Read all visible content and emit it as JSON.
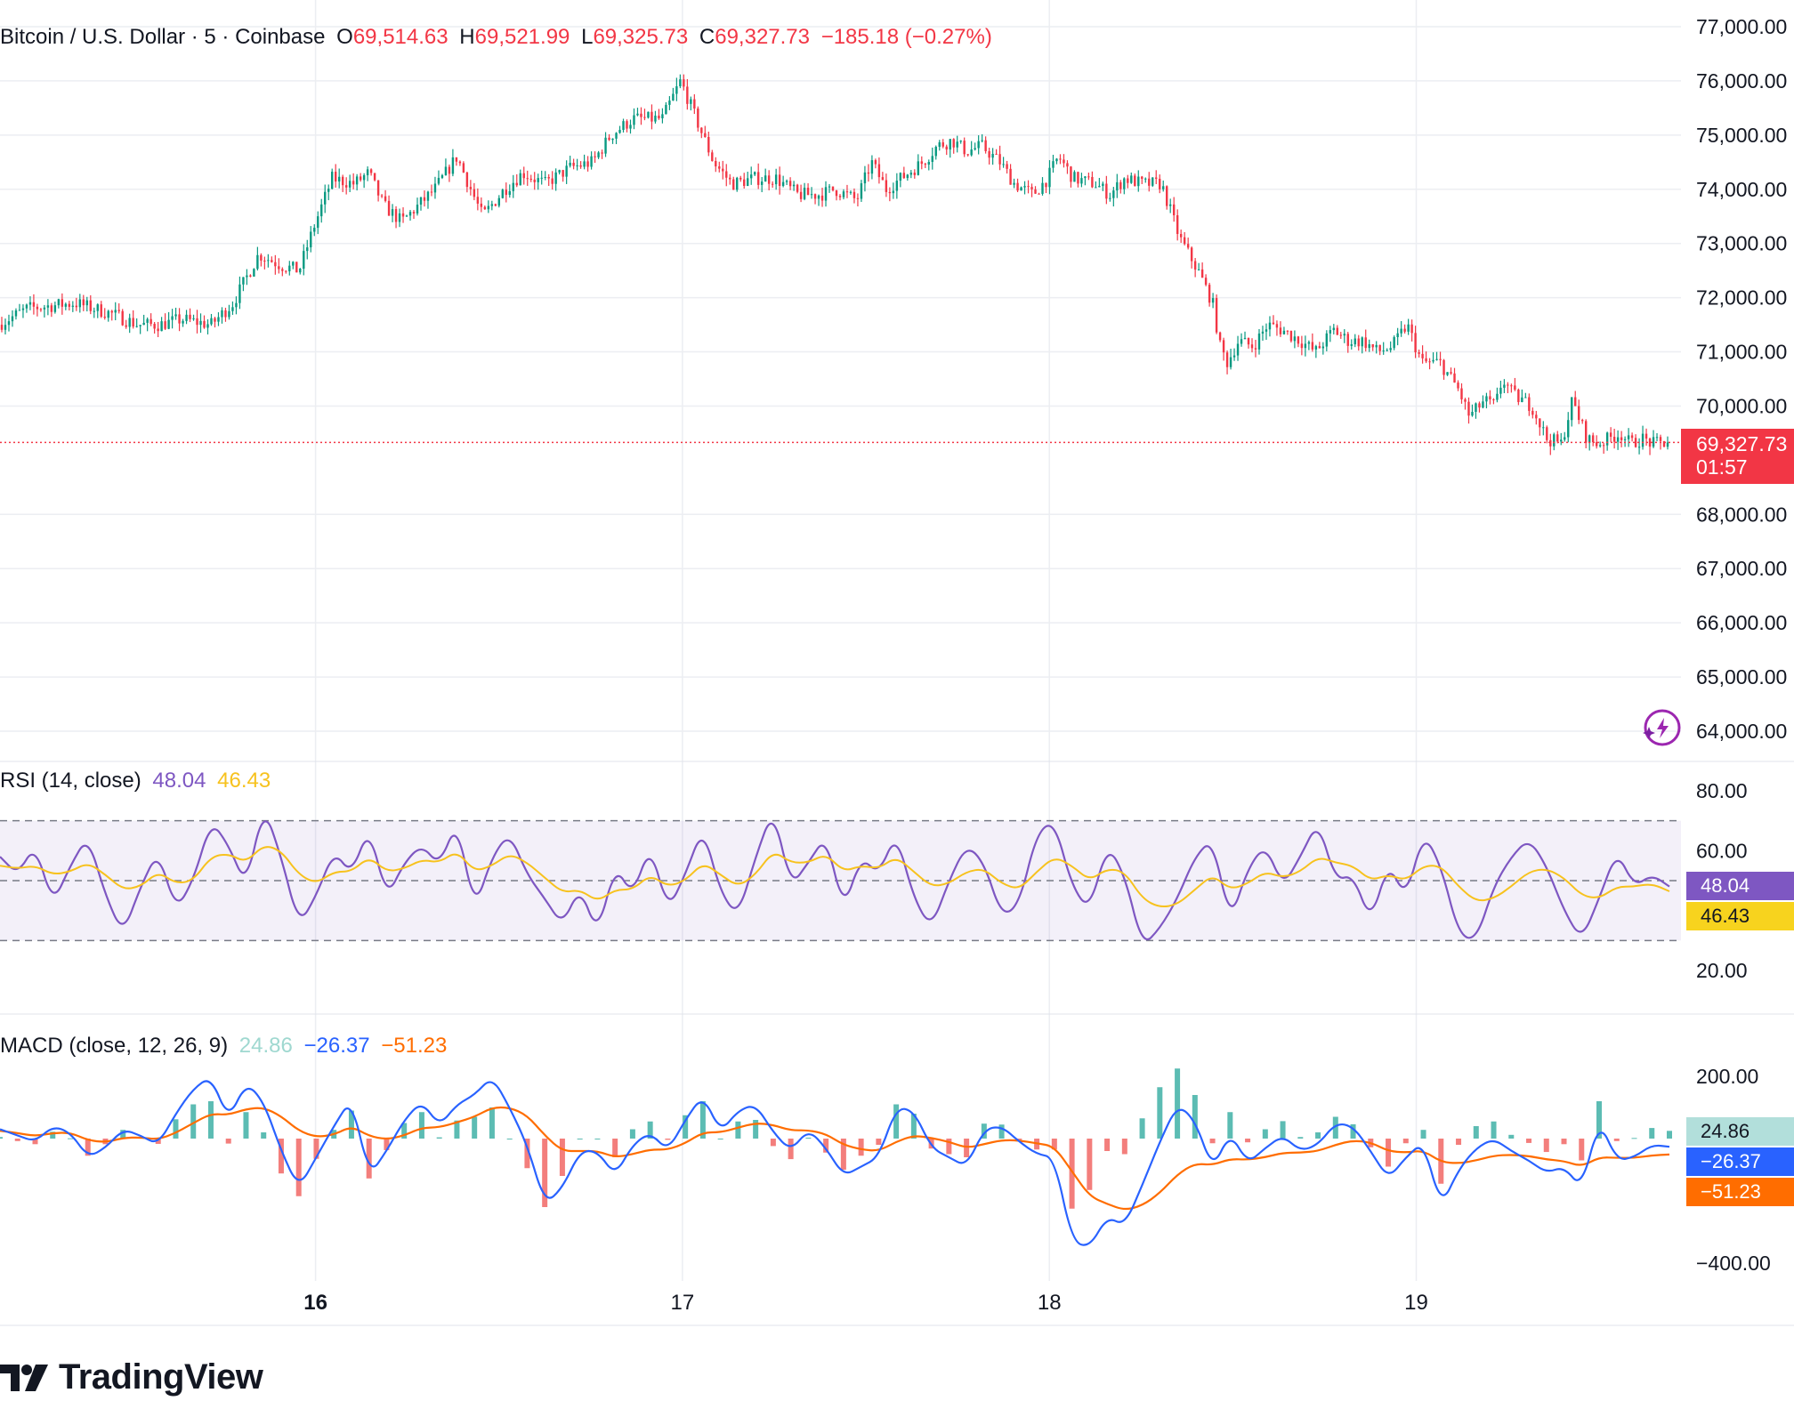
{
  "legend": {
    "title": "Bitcoin / U.S. Dollar · 5 · Coinbase",
    "o_label": "O",
    "o_value": "69,514.63",
    "h_label": "H",
    "h_value": "69,521.99",
    "l_label": "L",
    "l_value": "69,325.73",
    "c_label": "C",
    "c_value": "69,327.73",
    "change": "−185.18 (−0.27%)"
  },
  "price_badge": {
    "price": "69,327.73",
    "countdown": "01:57"
  },
  "rsi_legend": {
    "title": "RSI (14, close)",
    "rsi": "48.04",
    "ma": "46.43"
  },
  "macd_legend": {
    "title": "MACD (close, 12, 26, 9)",
    "hist": "24.86",
    "macd": "−26.37",
    "signal": "−51.23"
  },
  "badges": {
    "rsi": "48.04",
    "rsi_ma": "46.43",
    "hist": "24.86",
    "macd": "−26.37",
    "signal": "−51.23"
  },
  "colors": {
    "up": "#089981",
    "down": "#f23645",
    "rsi": "#7e57c2",
    "rsi_ma": "#f7c21e",
    "macd": "#2962ff",
    "signal": "#ff6d00",
    "hist_up": "#26a69a",
    "hist_down": "#ef5350",
    "grid": "#eceef2",
    "axis_text": "#131722"
  },
  "logo": {
    "icon": "tradingview-logo-icon",
    "text": "TradingView"
  },
  "chart_data": [
    {
      "type": "candlestick",
      "title": "Bitcoin / U.S. Dollar · 5 · Coinbase",
      "interval": "5",
      "exchange": "Coinbase",
      "ylim": [
        64000,
        77000
      ],
      "y_ticks": [
        "77,000.00",
        "76,000.00",
        "75,000.00",
        "74,000.00",
        "73,000.00",
        "72,000.00",
        "71,000.00",
        "70,000.00",
        "68,000.00",
        "67,000.00",
        "66,000.00",
        "65,000.00",
        "64,000.00"
      ],
      "x_ticks": [
        "16",
        "17",
        "18",
        "19"
      ],
      "x_tick_days": [
        16,
        17,
        18,
        19
      ],
      "x_range_days": [
        15.14,
        19.69
      ],
      "last_price": 69327.73,
      "price_path": {
        "day": [
          15.14,
          15.22,
          15.35,
          15.45,
          15.52,
          15.58,
          15.64,
          15.72,
          15.78,
          15.85,
          15.91,
          15.96,
          16.0,
          16.05,
          16.11,
          16.15,
          16.19,
          16.24,
          16.33,
          16.39,
          16.46,
          16.52,
          16.57,
          16.63,
          16.7,
          16.76,
          16.81,
          16.87,
          16.95,
          17.0,
          17.03,
          17.06,
          17.09,
          17.14,
          17.2,
          17.26,
          17.32,
          17.38,
          17.42,
          17.48,
          17.52,
          17.56,
          17.62,
          17.66,
          17.7,
          17.74,
          17.78,
          17.82,
          17.87,
          17.91,
          17.96,
          18.0,
          18.03,
          18.07,
          18.13,
          18.17,
          18.21,
          18.26,
          18.31,
          18.36,
          18.41,
          18.45,
          18.47,
          18.49,
          18.52,
          18.56,
          18.6,
          18.64,
          18.69,
          18.73,
          18.78,
          18.82,
          18.86,
          18.9,
          18.94,
          18.98,
          19.02,
          19.07,
          19.12,
          19.15,
          19.19,
          19.22,
          19.24,
          19.27,
          19.32,
          19.36,
          19.4,
          19.43,
          19.47,
          19.5,
          19.53,
          19.56,
          19.59,
          19.62,
          19.65,
          19.69
        ],
        "price": [
          71500,
          71800,
          71900,
          71700,
          71500,
          71500,
          71600,
          71500,
          71900,
          72800,
          72600,
          72500,
          73300,
          74200,
          74100,
          74300,
          73700,
          73400,
          74000,
          74600,
          73500,
          74000,
          74300,
          74100,
          74400,
          74500,
          75000,
          75300,
          75300,
          76000,
          75500,
          75000,
          74500,
          74100,
          74200,
          74200,
          73900,
          73900,
          74000,
          73800,
          74500,
          74000,
          74300,
          74500,
          74800,
          74900,
          74700,
          74800,
          74500,
          74100,
          73900,
          74200,
          74600,
          74200,
          74100,
          73900,
          74200,
          74100,
          74100,
          73100,
          72500,
          71900,
          71100,
          70800,
          71200,
          71100,
          71500,
          71400,
          71200,
          71000,
          71400,
          71200,
          71200,
          71000,
          71100,
          71500,
          70800,
          70800,
          70300,
          69800,
          70100,
          70000,
          70500,
          70200,
          70000,
          69400,
          69300,
          70100,
          69400,
          69300,
          69400,
          69500,
          69300,
          69400,
          69300,
          69327.73
        ]
      }
    },
    {
      "type": "line",
      "title": "RSI (14, close)",
      "ylim": [
        20,
        80
      ],
      "y_ticks": [
        "80.00",
        "60.00",
        "20.00"
      ],
      "bands": [
        30,
        50,
        70
      ],
      "last_rsi": 48.04,
      "last_ma": 46.43,
      "series": [
        {
          "name": "RSI",
          "values": [
            58,
            52,
            62,
            42,
            55,
            65,
            45,
            32,
            48,
            60,
            40,
            50,
            70,
            62,
            48,
            75,
            58,
            35,
            45,
            60,
            52,
            68,
            44,
            56,
            62,
            55,
            70,
            40,
            58,
            66,
            52,
            44,
            35,
            48,
            32,
            55,
            45,
            62,
            40,
            52,
            68,
            46,
            38,
            58,
            74,
            48,
            56,
            65,
            40,
            58,
            52,
            66,
            44,
            34,
            50,
            62,
            56,
            38,
            42,
            66,
            70,
            48,
            40,
            62,
            52,
            28,
            34,
            44,
            58,
            64,
            36,
            54,
            62,
            48,
            58,
            70,
            50,
            52,
            36,
            56,
            44,
            66,
            55,
            32,
            30,
            48,
            58,
            64,
            55,
            40,
            30,
            44,
            60,
            48,
            52,
            48.04
          ]
        },
        {
          "name": "RSI-based MA",
          "values": [
            55,
            54,
            55,
            52,
            53,
            56,
            52,
            47,
            48,
            53,
            49,
            50,
            58,
            59,
            56,
            62,
            60,
            52,
            49,
            53,
            53,
            58,
            53,
            54,
            57,
            56,
            60,
            53,
            55,
            59,
            56,
            51,
            46,
            47,
            43,
            47,
            47,
            52,
            48,
            50,
            56,
            52,
            48,
            52,
            60,
            56,
            56,
            59,
            53,
            55,
            54,
            58,
            53,
            48,
            49,
            53,
            54,
            49,
            47,
            53,
            58,
            55,
            50,
            54,
            53,
            44,
            41,
            42,
            47,
            52,
            47,
            49,
            53,
            51,
            53,
            58,
            56,
            55,
            50,
            52,
            50,
            55,
            55,
            48,
            43,
            44,
            48,
            53,
            54,
            51,
            45,
            44,
            48,
            48,
            49,
            46.43
          ]
        }
      ]
    },
    {
      "type": "line",
      "title": "MACD (close, 12, 26, 9)",
      "ylim": [
        -400,
        200
      ],
      "y_ticks": [
        "200.00",
        "−400.00"
      ],
      "last_histogram": 24.86,
      "last_macd": -26.37,
      "last_signal": -51.23,
      "series": [
        {
          "name": "MACD",
          "values": [
            30,
            10,
            -10,
            40,
            20,
            -60,
            -30,
            30,
            10,
            -20,
            80,
            160,
            200,
            60,
            180,
            120,
            -40,
            -160,
            -60,
            40,
            130,
            -120,
            -40,
            60,
            120,
            40,
            110,
            140,
            200,
            100,
            -20,
            -210,
            -160,
            -40,
            -40,
            -120,
            -20,
            20,
            -40,
            60,
            140,
            20,
            90,
            110,
            20,
            -40,
            30,
            -30,
            -120,
            -90,
            -60,
            100,
            90,
            -30,
            -60,
            -90,
            30,
            40,
            -10,
            -50,
            -60,
            -330,
            -350,
            -250,
            -280,
            -150,
            -10,
            110,
            60,
            -100,
            20,
            -80,
            -30,
            10,
            -40,
            -20,
            50,
            40,
            -40,
            -130,
            -60,
            -10,
            -220,
            -100,
            -30,
            0,
            -40,
            -70,
            -110,
            -90,
            -160,
            60,
            -70,
            -60,
            -20,
            -26.37
          ]
        },
        {
          "name": "Signal",
          "values": [
            25,
            18,
            8,
            18,
            19,
            -5,
            -12,
            2,
            4,
            -3,
            18,
            50,
            80,
            76,
            95,
            100,
            72,
            25,
            5,
            12,
            40,
            8,
            -3,
            10,
            35,
            36,
            52,
            70,
            100,
            100,
            75,
            10,
            -40,
            -40,
            -40,
            -60,
            -50,
            -35,
            -36,
            -15,
            20,
            20,
            35,
            50,
            44,
            26,
            27,
            15,
            -20,
            -35,
            -40,
            -10,
            10,
            2,
            -10,
            -30,
            -18,
            -5,
            -6,
            -15,
            -25,
            -105,
            -185,
            -210,
            -230,
            -215,
            -175,
            -115,
            -80,
            -85,
            -65,
            -68,
            -60,
            -46,
            -45,
            -40,
            -20,
            -6,
            -12,
            -40,
            -45,
            -38,
            -75,
            -80,
            -70,
            -55,
            -52,
            -56,
            -67,
            -72,
            -90,
            -60,
            -62,
            -62,
            -54,
            -51.23
          ]
        },
        {
          "name": "Histogram",
          "values": [
            5,
            -8,
            -18,
            22,
            1,
            -55,
            -18,
            28,
            6,
            -17,
            62,
            110,
            120,
            -16,
            85,
            20,
            -112,
            -185,
            -65,
            28,
            90,
            -128,
            -37,
            50,
            85,
            4,
            58,
            70,
            100,
            0,
            -95,
            -220,
            -120,
            0,
            0,
            -60,
            30,
            55,
            -4,
            75,
            120,
            0,
            55,
            60,
            -24,
            -66,
            3,
            -45,
            -100,
            -55,
            -20,
            110,
            80,
            -32,
            -50,
            -60,
            48,
            45,
            -4,
            -35,
            -35,
            -225,
            -165,
            -40,
            -50,
            65,
            165,
            225,
            140,
            -15,
            85,
            -12,
            30,
            56,
            5,
            20,
            70,
            46,
            -28,
            -90,
            -15,
            28,
            -145,
            -20,
            40,
            55,
            12,
            -14,
            -43,
            -18,
            -70,
            120,
            -8,
            2,
            34,
            24.86
          ]
        }
      ]
    }
  ]
}
